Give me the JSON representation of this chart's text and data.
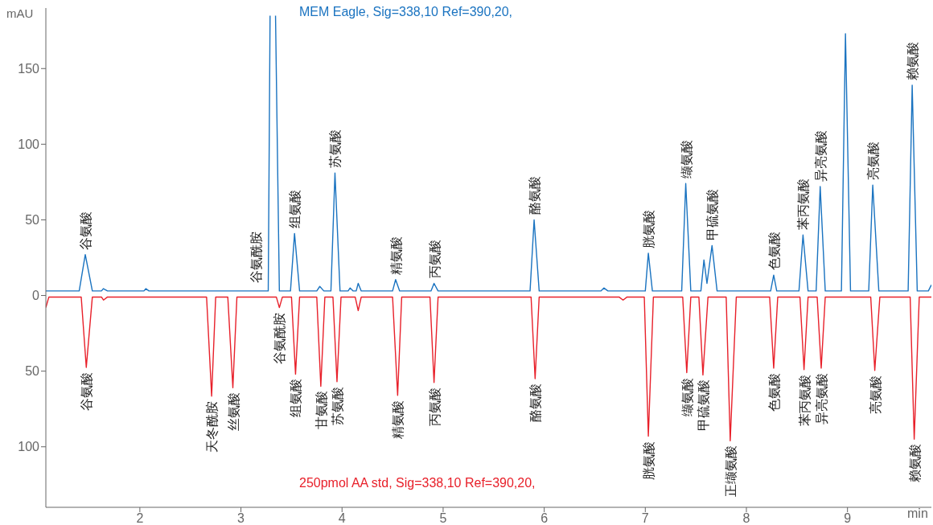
{
  "chart_data": {
    "type": "line",
    "xlabel": "min",
    "ylabel": "mAU",
    "xlim": [
      1.07,
      9.83
    ],
    "xticks": [
      2,
      3,
      4,
      5,
      6,
      7,
      8,
      9
    ],
    "ylim": [
      -140,
      190
    ],
    "yticks": [
      {
        "value": -100,
        "label": "100"
      },
      {
        "value": -50,
        "label": "50"
      },
      0,
      50,
      100,
      150
    ],
    "series": [
      {
        "name": "MEM Eagle, Sig=338,10 Ref=390,20,",
        "color": "#1a73c0",
        "x": [
          1.07,
          1.4,
          1.46,
          1.53,
          1.62,
          1.64,
          1.68,
          2.04,
          2.06,
          2.09,
          3.27,
          3.288,
          3.29,
          3.34,
          3.342,
          3.38,
          3.49,
          3.53,
          3.58,
          3.75,
          3.78,
          3.82,
          3.89,
          3.93,
          3.98,
          4.06,
          4.08,
          4.11,
          4.14,
          4.16,
          4.19,
          4.5,
          4.53,
          4.57,
          4.88,
          4.91,
          4.95,
          5.86,
          5.9,
          5.95,
          6.56,
          6.59,
          6.63,
          7.0,
          7.03,
          7.07,
          7.36,
          7.4,
          7.45,
          7.55,
          7.58,
          7.61,
          7.66,
          7.71,
          8.24,
          8.27,
          8.3,
          8.52,
          8.56,
          8.61,
          8.69,
          8.73,
          8.78,
          8.94,
          8.98,
          9.03,
          9.21,
          9.25,
          9.31,
          9.6,
          9.64,
          9.69,
          9.8,
          9.83
        ],
        "values": [
          3,
          3,
          27,
          3,
          3,
          4.5,
          3,
          3,
          4.5,
          3,
          3,
          185,
          null,
          null,
          185,
          3,
          3,
          41,
          3,
          3,
          6,
          3,
          3,
          81,
          3,
          3,
          5,
          3,
          3,
          8,
          3,
          3,
          10.5,
          3,
          3,
          8,
          3,
          3,
          50,
          3,
          3,
          5,
          3,
          3,
          28,
          3,
          3,
          74,
          3,
          3,
          23.5,
          8,
          33,
          3,
          3,
          13.5,
          3,
          3,
          40,
          3,
          3,
          72,
          3,
          3,
          173,
          3,
          3,
          73,
          3,
          3,
          139,
          3,
          3,
          7
        ]
      },
      {
        "name": "250pmol AA std, Sig=338,10 Ref=390,20,",
        "color": "#e8202a",
        "x": [
          1.07,
          1.1,
          1.42,
          1.47,
          1.53,
          1.62,
          1.64,
          1.68,
          2.66,
          2.71,
          2.75,
          2.87,
          2.92,
          2.96,
          3.35,
          3.38,
          3.41,
          3.5,
          3.54,
          3.58,
          3.75,
          3.79,
          3.83,
          3.91,
          3.95,
          3.99,
          4.13,
          4.16,
          4.19,
          4.5,
          4.55,
          4.59,
          4.87,
          4.91,
          4.95,
          5.87,
          5.91,
          5.95,
          6.74,
          6.78,
          6.82,
          6.99,
          7.03,
          7.08,
          7.37,
          7.41,
          7.45,
          7.53,
          7.57,
          7.62,
          7.8,
          7.84,
          7.9,
          8.23,
          8.27,
          8.31,
          8.53,
          8.57,
          8.61,
          8.7,
          8.74,
          8.78,
          9.23,
          9.27,
          9.32,
          9.62,
          9.66,
          9.71,
          9.83
        ],
        "values": [
          -8,
          -1,
          -1,
          -47.5,
          -1,
          -1,
          -3,
          -1,
          -1,
          -66.5,
          -1,
          -1,
          -61,
          -1,
          -1,
          -8,
          -1,
          -1,
          -52,
          -1,
          -1,
          -60,
          -1,
          -1,
          -57,
          -1,
          -1,
          -10,
          -1,
          -1,
          -66,
          -1,
          -1,
          -57.5,
          -1,
          -1,
          -55,
          -1,
          -1,
          -3,
          -1,
          -1,
          -93,
          -1,
          -1,
          -51,
          -1,
          -1,
          -52.5,
          -1,
          -1,
          -96,
          -1,
          -1,
          -48,
          -1,
          -1,
          -49,
          -1,
          -1,
          -48,
          -1,
          -1,
          -49.5,
          -1,
          -1,
          -95,
          -1,
          -1
        ]
      }
    ],
    "annotations": [
      {
        "text": "谷氨酸",
        "x": 1.46,
        "y": 27
      },
      {
        "text": "谷氨酰胺",
        "x": 3.15,
        "y": 5
      },
      {
        "text": "组氨酸",
        "x": 3.53,
        "y": 41
      },
      {
        "text": "苏氨酸",
        "x": 3.93,
        "y": 81
      },
      {
        "text": "精氨酸",
        "x": 4.53,
        "y": 10.5
      },
      {
        "text": "丙氨酸",
        "x": 4.91,
        "y": 8
      },
      {
        "text": "酪氨酸",
        "x": 5.9,
        "y": 50
      },
      {
        "text": "胱氨酸",
        "x": 7.03,
        "y": 28
      },
      {
        "text": "缬氨酸",
        "x": 7.4,
        "y": 74
      },
      {
        "text": "甲硫氨酸",
        "x": 7.66,
        "y": 33
      },
      {
        "text": "色氨酸",
        "x": 8.27,
        "y": 13.5
      },
      {
        "text": "苯丙氨酸",
        "x": 8.56,
        "y": 40
      },
      {
        "text": "异亮氨酸",
        "x": 8.73,
        "y": 72
      },
      {
        "text": "亮氨酸",
        "x": 9.25,
        "y": 73
      },
      {
        "text": "赖氨酸",
        "x": 9.64,
        "y": 139
      },
      {
        "text": "谷氨酸",
        "x": 1.47,
        "y": -47.5
      },
      {
        "text": "天冬酰胺",
        "x": 2.71,
        "y": -66.5
      },
      {
        "text": "丝氨酸",
        "x": 2.92,
        "y": -61
      },
      {
        "text": "谷氨酰胺",
        "x": 3.38,
        "y": -8
      },
      {
        "text": "组氨酸",
        "x": 3.54,
        "y": -52
      },
      {
        "text": "甘氨酸",
        "x": 3.79,
        "y": -60
      },
      {
        "text": "苏氨酸",
        "x": 3.95,
        "y": -57
      },
      {
        "text": "精氨酸",
        "x": 4.55,
        "y": -66
      },
      {
        "text": "丙氨酸",
        "x": 4.91,
        "y": -57.5
      },
      {
        "text": "酪氨酸",
        "x": 5.91,
        "y": -55
      },
      {
        "text": "胱氨酸",
        "x": 7.03,
        "y": -93
      },
      {
        "text": "缬氨酸",
        "x": 7.41,
        "y": -51
      },
      {
        "text": "甲硫氨酸",
        "x": 7.57,
        "y": -52.5
      },
      {
        "text": "正缬氨酸",
        "x": 7.84,
        "y": -96
      },
      {
        "text": "色氨酸",
        "x": 8.27,
        "y": -48
      },
      {
        "text": "苯丙氨酸",
        "x": 8.57,
        "y": -49
      },
      {
        "text": "异亮氨酸",
        "x": 8.74,
        "y": -48
      },
      {
        "text": "亮氨酸",
        "x": 9.27,
        "y": -49.5
      },
      {
        "text": "赖氨酸",
        "x": 9.66,
        "y": -95
      }
    ]
  }
}
